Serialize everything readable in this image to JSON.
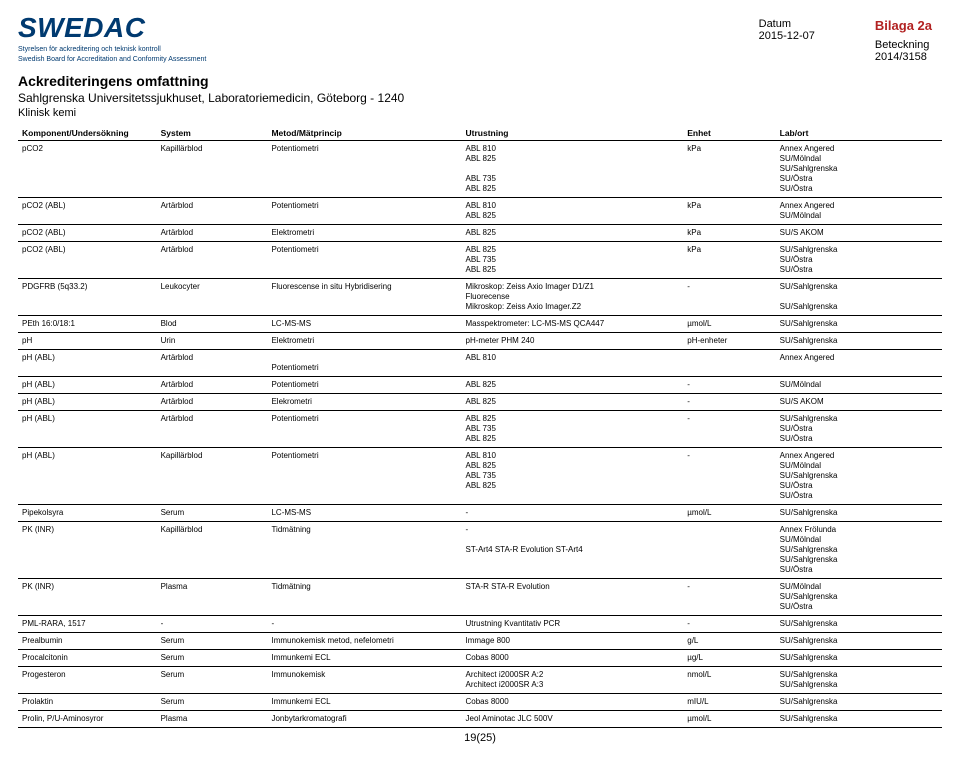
{
  "logo": {
    "title": "SWEDAC",
    "sub1": "Styrelsen för ackreditering och teknisk kontroll",
    "sub2": "Swedish Board for Accreditation and Conformity Assessment"
  },
  "bilaga": "Bilaga 2a",
  "meta": {
    "datum_label": "Datum",
    "datum_value": "2015-12-07",
    "beteckning_label": "Beteckning",
    "beteckning_value": "2014/3158"
  },
  "headings": {
    "h1": "Ackrediteringens omfattning",
    "h2": "Sahlgrenska Universitetssjukhuset, Laboratoriemedicin, Göteborg - 1240",
    "h3": "Klinisk kemi"
  },
  "columns": [
    "Komponent/Undersökning",
    "System",
    "Metod/Mätprincip",
    "Utrustning",
    "Enhet",
    "Lab/ort"
  ],
  "rows": [
    {
      "c": [
        "pCO2",
        "Kapillärblod",
        "Potentiometri",
        "ABL 810\nABL 825\n\nABL 735\nABL 825",
        "kPa",
        "Annex Angered\nSU/Mölndal\nSU/Sahlgrenska\nSU/Östra\nSU/Östra"
      ]
    },
    {
      "c": [
        "pCO2 (ABL)",
        "Artärblod",
        "Potentiometri",
        "ABL 810\nABL 825",
        "kPa",
        "Annex Angered\nSU/Mölndal"
      ]
    },
    {
      "c": [
        "pCO2 (ABL)",
        "Artärblod",
        "Elektrometri",
        "ABL 825",
        "kPa",
        "SU/S AKOM"
      ]
    },
    {
      "c": [
        "pCO2 (ABL)",
        "Artärblod",
        "Potentiometri",
        "ABL 825\nABL 735\nABL 825",
        "kPa",
        "SU/Sahlgrenska\nSU/Östra\nSU/Östra"
      ]
    },
    {
      "c": [
        "PDGFRB (5q33.2)",
        "Leukocyter",
        "Fluorescense in situ Hybridisering",
        "Mikroskop: Zeiss Axio Imager D1/Z1\nFluorecense\nMikroskop: Zeiss Axio Imager.Z2",
        "-",
        "SU/Sahlgrenska\n\nSU/Sahlgrenska"
      ]
    },
    {
      "c": [
        "PEth 16:0/18:1",
        "Blod",
        "LC-MS-MS",
        "Masspektrometer: LC-MS-MS QCA447",
        "µmol/L",
        "SU/Sahlgrenska"
      ]
    },
    {
      "c": [
        "pH",
        "Urin",
        "Elektrometri",
        "pH-meter PHM 240",
        "pH-enheter",
        "SU/Sahlgrenska"
      ]
    },
    {
      "c": [
        "pH (ABL)",
        "Artärblod",
        "\nPotentiometri",
        "ABL 810",
        "",
        "Annex Angered"
      ]
    },
    {
      "c": [
        "pH (ABL)",
        "Artärblod",
        "Potentiometri",
        "ABL 825",
        "-",
        "SU/Mölndal"
      ]
    },
    {
      "c": [
        "pH (ABL)",
        "Artärblod",
        "Elekrometri",
        "ABL 825",
        "-",
        "SU/S AKOM"
      ]
    },
    {
      "c": [
        "pH (ABL)",
        "Artärblod",
        "Potentiometri",
        "ABL 825\nABL 735\nABL 825",
        "-",
        "SU/Sahlgrenska\nSU/Östra\nSU/Östra"
      ]
    },
    {
      "c": [
        "pH (ABL)",
        "Kapillärblod",
        "Potentiometri",
        "ABL 810\nABL 825\nABL 735\nABL 825",
        "-",
        "Annex Angered\nSU/Mölndal\nSU/Sahlgrenska\nSU/Östra\nSU/Östra"
      ]
    },
    {
      "c": [
        "Pipekolsyra",
        "Serum",
        "LC-MS-MS",
        "-",
        "µmol/L",
        "SU/Sahlgrenska"
      ]
    },
    {
      "c": [
        "PK (INR)",
        "Kapillärblod",
        "Tidmätning",
        "-\n\nST-Art4 STA-R Evolution ST-Art4",
        "",
        "Annex Frölunda\nSU/Mölndal\nSU/Sahlgrenska\nSU/Sahlgrenska\nSU/Östra"
      ]
    },
    {
      "c": [
        "PK (INR)",
        "Plasma",
        "Tidmätning",
        "STA-R STA-R Evolution",
        "-",
        "SU/Mölndal\nSU/Sahlgrenska\nSU/Östra"
      ]
    },
    {
      "c": [
        "PML-RARA, 1517",
        "-",
        "-",
        "Utrustning Kvantitativ PCR",
        "-",
        "SU/Sahlgrenska"
      ]
    },
    {
      "c": [
        "Prealbumin",
        "Serum",
        "Immunokemisk metod, nefelometri",
        "Immage 800",
        "g/L",
        "SU/Sahlgrenska"
      ]
    },
    {
      "c": [
        "Procalcitonin",
        "Serum",
        "Immunkemi ECL",
        "Cobas 8000",
        "µg/L",
        "SU/Sahlgrenska"
      ]
    },
    {
      "c": [
        "Progesteron",
        "Serum",
        "Immunokemisk",
        "Architect i2000SR A:2\nArchitect i2000SR A:3",
        "nmol/L",
        "SU/Sahlgrenska\nSU/Sahlgrenska"
      ]
    },
    {
      "c": [
        "Prolaktin",
        "Serum",
        "Immunkemi ECL",
        "Cobas 8000",
        "mIU/L",
        "SU/Sahlgrenska"
      ]
    },
    {
      "c": [
        "Prolin, P/U-Aminosyror",
        "Plasma",
        "Jonbytarkromatografi",
        "Jeol Aminotac JLC 500V",
        "µmol/L",
        "SU/Sahlgrenska"
      ]
    }
  ],
  "pagenum": "19(25)"
}
